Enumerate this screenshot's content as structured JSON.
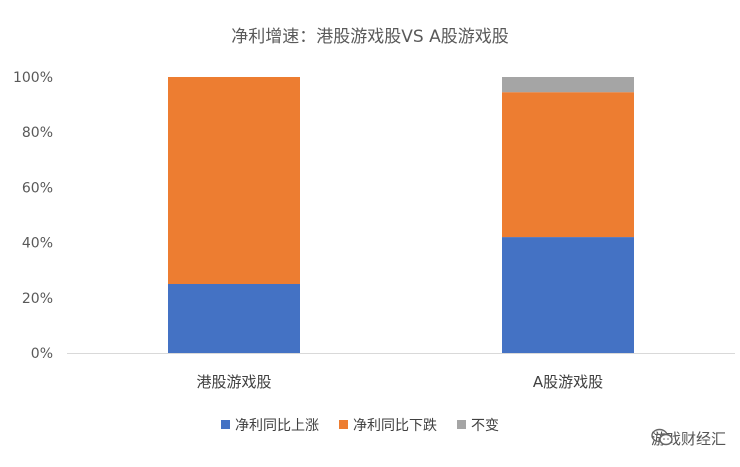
{
  "chart_data": {
    "type": "bar",
    "stacked": true,
    "title": "净利增速：港股游戏股VS A股游戏股",
    "categories": [
      "港股游戏股",
      "A股游戏股"
    ],
    "series": [
      {
        "name": "净利同比上涨",
        "color": "#4472C4",
        "values": [
          25,
          42
        ]
      },
      {
        "name": "净利同比下跌",
        "color": "#ED7D31",
        "values": [
          75,
          52.5
        ]
      },
      {
        "name": "不变",
        "color": "#A5A5A5",
        "values": [
          0,
          5.5
        ]
      }
    ],
    "ylim": [
      0,
      100
    ],
    "yticks": [
      "0%",
      "20%",
      "40%",
      "60%",
      "80%",
      "100%"
    ],
    "grid": false,
    "legend": "bottom"
  },
  "watermark": {
    "text": "游戏财经汇",
    "icon": "wechat-icon"
  }
}
